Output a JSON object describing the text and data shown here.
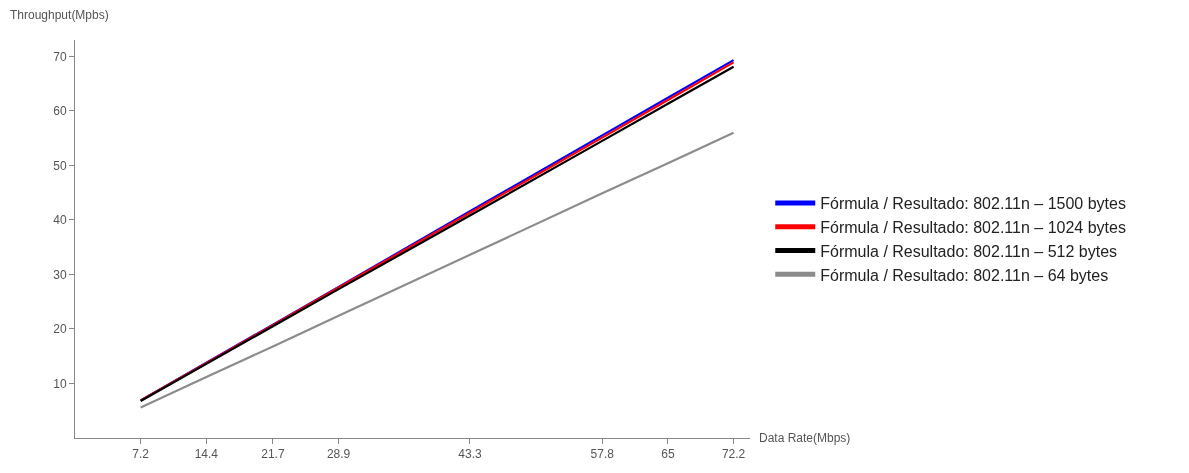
{
  "chart_data": {
    "type": "line",
    "xlabel": "Data Rate(Mbps)",
    "ylabel": "Throughput(Mpbs)",
    "x": [
      7.2,
      14.4,
      21.7,
      28.9,
      43.3,
      57.8,
      65,
      72.2
    ],
    "series": [
      {
        "name": "Fórmula / Resultado: 802.11n – 1500 bytes",
        "color": "#0000ff",
        "values": [
          6.9,
          13.8,
          20.8,
          27.7,
          41.6,
          55.5,
          62.4,
          69.3
        ]
      },
      {
        "name": "Fórmula / Resultado: 802.11n – 1024 bytes",
        "color": "#ff0000",
        "values": [
          6.9,
          13.7,
          20.7,
          27.6,
          41.3,
          55.1,
          62.0,
          68.9
        ]
      },
      {
        "name": "Fórmula / Resultado: 802.11n – 512 bytes",
        "color": "#000000",
        "values": [
          6.8,
          13.6,
          20.5,
          27.3,
          40.8,
          54.5,
          61.3,
          68.1
        ]
      },
      {
        "name": "Fórmula / Resultado: 802.11n – 64 bytes",
        "color": "#8c8c8c",
        "values": [
          5.6,
          11.2,
          16.8,
          22.4,
          33.6,
          44.9,
          50.4,
          56.0
        ]
      }
    ],
    "xlim": [
      0,
      74
    ],
    "ylim": [
      0,
      73
    ],
    "xticks": [
      7.2,
      14.4,
      21.7,
      28.9,
      43.3,
      57.8,
      65,
      72.2
    ],
    "yticks": [
      10,
      20,
      30,
      40,
      50,
      60,
      70
    ],
    "legend": "right",
    "marker": "none",
    "line_style": "solid"
  }
}
